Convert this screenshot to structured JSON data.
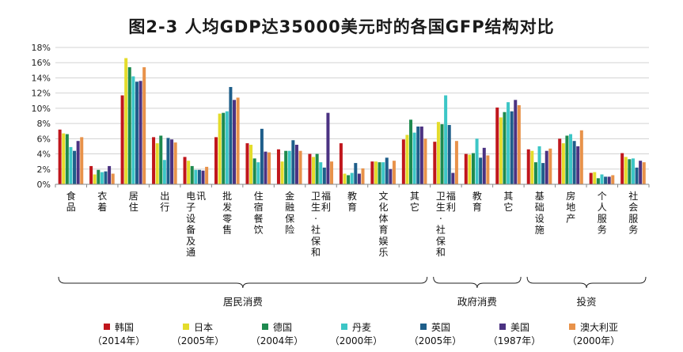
{
  "title": "图2-3 人均GDP达35000美元时的各国GFP结构对比",
  "chart_data": {
    "type": "bar",
    "title": "图2-3 人均GDP达35000美元时的各国GFP结构对比",
    "ylim": [
      0,
      18
    ],
    "yticks": [
      "0%",
      "2%",
      "4%",
      "6%",
      "8%",
      "10%",
      "12%",
      "14%",
      "16%",
      "18%"
    ],
    "categories": [
      "食品",
      "衣着",
      "居住",
      "出行",
      "电子设备及通讯",
      "批发零售",
      "住宿餐饮",
      "金融保险",
      "卫生、社保和福利",
      "教育",
      "文化体育娱乐",
      "其它",
      "卫生、社保和福利",
      "教育",
      "其它",
      "基础设施",
      "房地产",
      "个人服务",
      "社会服务"
    ],
    "category_labels_vertical": [
      "食品",
      "衣着",
      "居住",
      "出行",
      "电子设备及通讯",
      "批发零售",
      "住宿餐饮",
      "金融保险",
      "卫生·社保和福利",
      "教育",
      "文化体育娱乐",
      "其它",
      "卫生·社保和福利",
      "教育",
      "其它",
      "基础设施",
      "房地产",
      "个人服务",
      "社会服务"
    ],
    "groups": [
      {
        "label": "居民消费",
        "from": 0,
        "to": 11
      },
      {
        "label": "政府消费",
        "from": 12,
        "to": 14
      },
      {
        "label": "投资",
        "from": 15,
        "to": 18
      }
    ],
    "series": [
      {
        "name": "韩国",
        "year": "（2014年）",
        "color": "#c0161c",
        "values": [
          7.2,
          2.4,
          11.7,
          6.2,
          3.6,
          6.2,
          5.4,
          4.6,
          4.0,
          5.4,
          3.0,
          5.9,
          5.6,
          4.0,
          10.1,
          4.6,
          6.0,
          1.5,
          4.1
        ]
      },
      {
        "name": "日本",
        "year": "（2005年）",
        "color": "#e4dc2b",
        "values": [
          6.7,
          1.3,
          16.6,
          5.4,
          3.1,
          9.3,
          5.2,
          3.0,
          3.6,
          1.4,
          3.0,
          6.5,
          8.2,
          3.9,
          8.8,
          4.4,
          5.4,
          1.6,
          3.6
        ]
      },
      {
        "name": "德国",
        "year": "（2004年）",
        "color": "#1e8a4f",
        "values": [
          6.6,
          1.9,
          15.4,
          6.4,
          2.4,
          9.4,
          3.4,
          4.4,
          4.0,
          1.2,
          2.9,
          8.5,
          7.9,
          4.1,
          9.5,
          2.9,
          6.4,
          0.8,
          3.3
        ]
      },
      {
        "name": "丹麦",
        "year": "（2000年）",
        "color": "#3cc6c6",
        "values": [
          4.9,
          1.6,
          14.2,
          3.2,
          1.9,
          9.6,
          2.9,
          4.4,
          2.9,
          1.5,
          2.9,
          6.8,
          11.7,
          6.0,
          10.8,
          5.0,
          6.6,
          1.3,
          3.4
        ]
      },
      {
        "name": "英国",
        "year": "（2005年）",
        "color": "#1e5e8a",
        "values": [
          4.4,
          1.7,
          13.5,
          6.1,
          1.9,
          12.8,
          7.3,
          5.8,
          2.2,
          2.8,
          3.5,
          7.6,
          7.8,
          3.5,
          9.6,
          2.8,
          5.7,
          1.0,
          2.2
        ]
      },
      {
        "name": "美国",
        "year": "（1987年）",
        "color": "#4b3282",
        "values": [
          5.7,
          2.4,
          13.6,
          5.9,
          1.8,
          11.1,
          4.3,
          5.2,
          9.4,
          1.4,
          2.0,
          7.6,
          1.5,
          4.8,
          11.1,
          4.4,
          5.0,
          1.0,
          3.1
        ]
      },
      {
        "name": "澳大利亚",
        "year": "（2000年）",
        "color": "#e8924a",
        "values": [
          6.2,
          1.4,
          15.4,
          5.5,
          2.3,
          11.4,
          4.2,
          4.4,
          3.0,
          2.1,
          3.1,
          6.0,
          5.7,
          3.8,
          10.4,
          4.7,
          7.1,
          1.2,
          2.9
        ]
      }
    ]
  }
}
